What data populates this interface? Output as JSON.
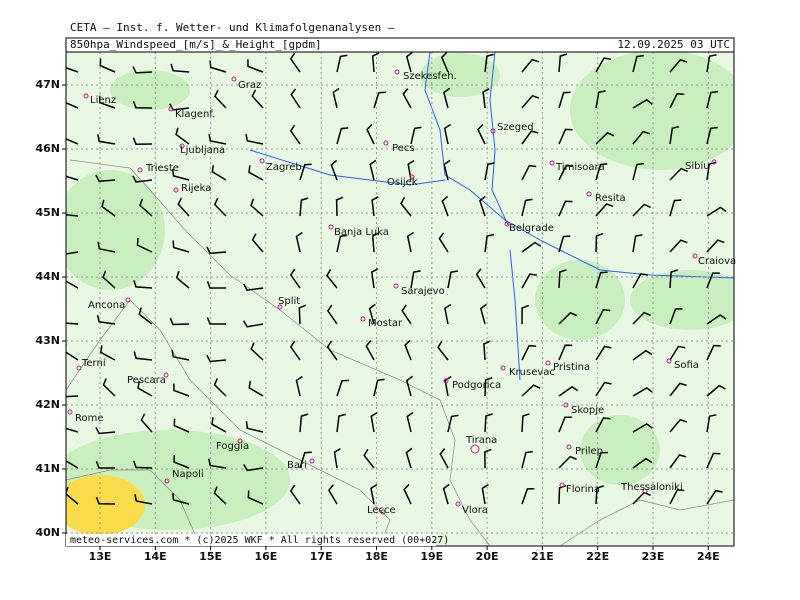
{
  "header": {
    "org": "CETA — Inst. f. Wetter- und Klimafolgenanalysen —",
    "title": "850hpa_Windspeed_[m/s]_&_Height_[gpdm]",
    "date": "12.09.2025 03 UTC"
  },
  "map": {
    "lat_labels": [
      "47N",
      "46N",
      "45N",
      "44N",
      "43N",
      "42N",
      "41N",
      "40N"
    ],
    "lon_labels": [
      "13E",
      "14E",
      "15E",
      "16E",
      "17E",
      "18E",
      "19E",
      "20E",
      "21E",
      "22E",
      "23E",
      "24E"
    ],
    "cities": [
      "Szekesfeh.",
      "Lienz",
      "Graz",
      "Klagenf.",
      "Ljubljana",
      "Zagreb",
      "Pecs",
      "Szeged",
      "Timisoara",
      "Sibiu",
      "Trieste",
      "Rijeka",
      "Osijek",
      "Resita",
      "Belgrade",
      "Banja Luka",
      "Craiova",
      "Sarajevo",
      "Ancona",
      "Split",
      "Mostar",
      "Terni",
      "Pescara",
      "Krusevac",
      "Pristina",
      "Sofia",
      "Podgorica",
      "Rome",
      "Skopje",
      "Tirana",
      "Foggia",
      "Prilep",
      "Bari",
      "Napoli",
      "Florina",
      "Thessaloniki",
      "Vlora",
      "Lecce"
    ]
  },
  "footer": "meteo-services.com * (c)2025 WKF * All rights reserved (00+027)"
}
